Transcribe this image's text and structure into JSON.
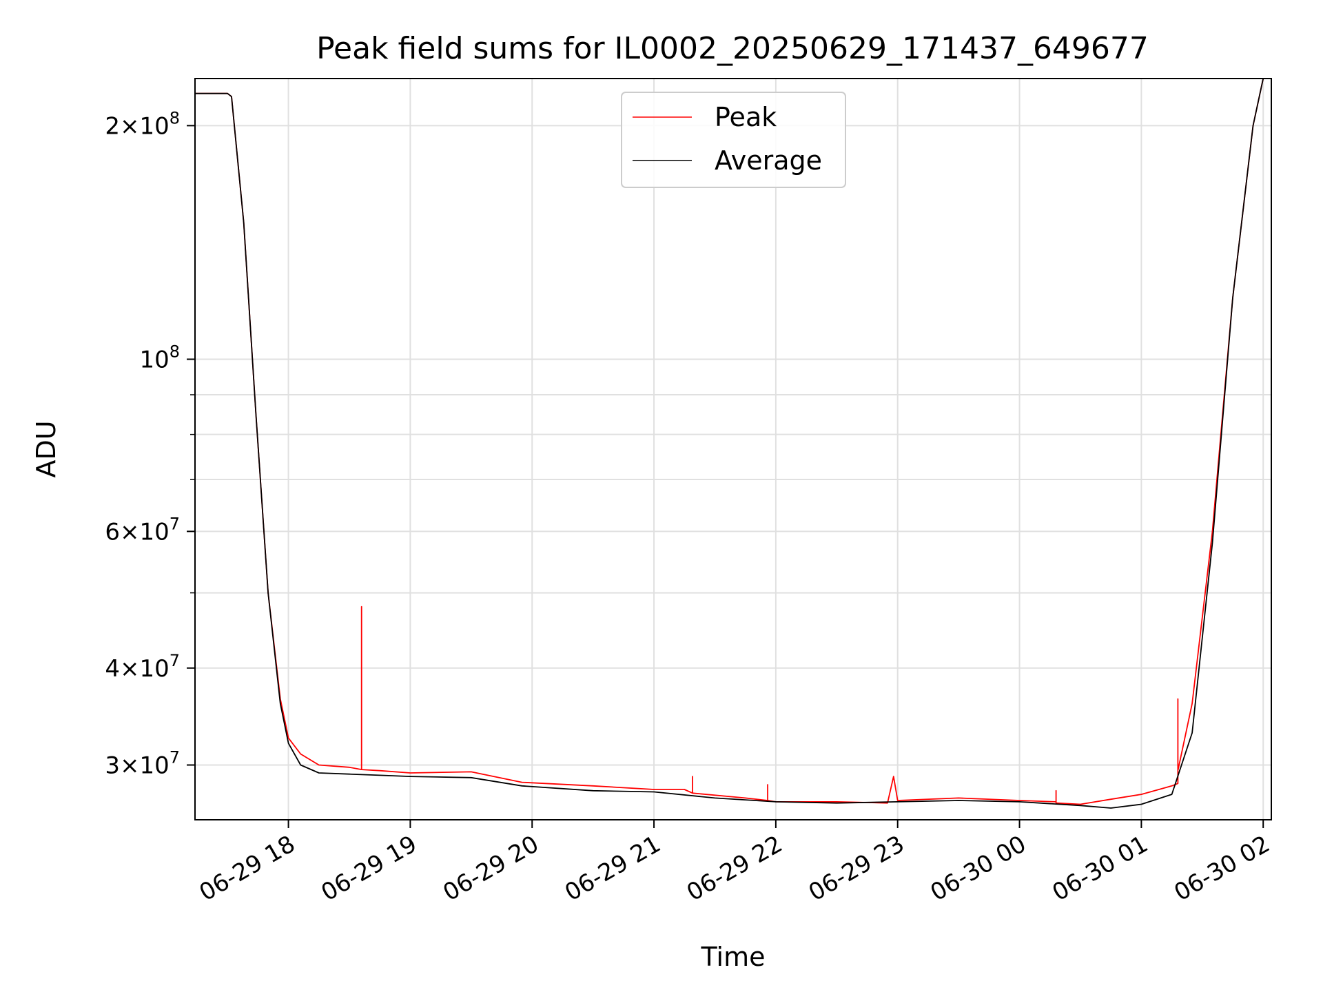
{
  "chart_data": {
    "type": "line",
    "title": "Peak field sums for IL0002_20250629_171437_649677",
    "xlabel": "Time",
    "ylabel": "ADU",
    "x_axis": {
      "type": "time",
      "range": [
        "2025-06-29T17:14",
        "2025-06-30T02:04"
      ],
      "ticks": [
        {
          "value": "2025-06-29T18:00",
          "label": "06-29 18"
        },
        {
          "value": "2025-06-29T19:00",
          "label": "06-29 19"
        },
        {
          "value": "2025-06-29T20:00",
          "label": "06-29 20"
        },
        {
          "value": "2025-06-29T21:00",
          "label": "06-29 21"
        },
        {
          "value": "2025-06-29T22:00",
          "label": "06-29 22"
        },
        {
          "value": "2025-06-29T23:00",
          "label": "06-29 23"
        },
        {
          "value": "2025-06-30T00:00",
          "label": "06-30 00"
        },
        {
          "value": "2025-06-30T01:00",
          "label": "06-30 01"
        },
        {
          "value": "2025-06-30T02:00",
          "label": "06-30 02"
        }
      ]
    },
    "y_axis": {
      "scale": "log",
      "range": [
        25500000,
        230000000
      ],
      "major_ticks": [
        {
          "value": 30000000,
          "label": "3×10^7",
          "mantissa": "3",
          "exp": "7"
        },
        {
          "value": 40000000,
          "label": "4×10^7",
          "mantissa": "4",
          "exp": "7"
        },
        {
          "value": 60000000,
          "label": "6×10^7",
          "mantissa": "6",
          "exp": "7"
        },
        {
          "value": 100000000,
          "label": "10^8",
          "mantissa": "",
          "exp": "8"
        },
        {
          "value": 200000000,
          "label": "2×10^8",
          "mantissa": "2",
          "exp": "8"
        }
      ],
      "minor_ticks": [
        50000000,
        70000000,
        80000000,
        90000000
      ]
    },
    "grid": true,
    "legend": {
      "position": "top-center",
      "entries": [
        "Peak",
        "Average"
      ]
    },
    "series": [
      {
        "name": "Peak",
        "color": "#ff0000",
        "x": [
          "2025-06-29T17:14",
          "2025-06-29T17:30",
          "2025-06-29T17:32",
          "2025-06-29T17:38",
          "2025-06-29T17:44",
          "2025-06-29T17:50",
          "2025-06-29T17:56",
          "2025-06-29T18:00",
          "2025-06-29T18:06",
          "2025-06-29T18:15",
          "2025-06-29T18:30",
          "2025-06-29T18:36",
          "2025-06-29T18:36",
          "2025-06-29T18:36",
          "2025-06-29T18:45",
          "2025-06-29T19:00",
          "2025-06-29T19:30",
          "2025-06-29T19:55",
          "2025-06-29T20:30",
          "2025-06-29T21:00",
          "2025-06-29T21:15",
          "2025-06-29T21:19",
          "2025-06-29T21:19",
          "2025-06-29T21:19",
          "2025-06-29T21:45",
          "2025-06-29T21:56",
          "2025-06-29T21:56",
          "2025-06-29T21:56",
          "2025-06-29T22:00",
          "2025-06-29T22:30",
          "2025-06-29T22:55",
          "2025-06-29T22:58",
          "2025-06-29T23:00",
          "2025-06-29T23:30",
          "2025-06-30T00:00",
          "2025-06-30T00:18",
          "2025-06-30T00:18",
          "2025-06-30T00:18",
          "2025-06-30T00:30",
          "2025-06-30T00:45",
          "2025-06-30T01:00",
          "2025-06-30T01:15",
          "2025-06-30T01:18",
          "2025-06-30T01:18",
          "2025-06-30T01:18",
          "2025-06-30T01:25",
          "2025-06-30T01:35",
          "2025-06-30T01:45",
          "2025-06-30T01:55",
          "2025-06-30T02:00",
          "2025-06-30T02:04"
        ],
        "y": [
          220000000,
          220000000,
          218000000,
          150000000,
          85000000,
          50000000,
          36500000,
          32500000,
          31000000,
          30000000,
          29800000,
          29600000,
          48000000,
          29600000,
          29500000,
          29300000,
          29400000,
          28500000,
          28200000,
          27900000,
          27900000,
          27600000,
          29000000,
          27600000,
          27200000,
          27000000,
          28300000,
          27000000,
          26900000,
          26900000,
          26800000,
          29000000,
          27000000,
          27200000,
          27000000,
          26900000,
          27800000,
          26800000,
          26700000,
          27100000,
          27500000,
          28200000,
          28400000,
          36500000,
          29500000,
          36000000,
          60000000,
          120000000,
          200000000,
          230000000,
          230000000
        ]
      },
      {
        "name": "Average",
        "color": "#000000",
        "x": [
          "2025-06-29T17:14",
          "2025-06-29T17:30",
          "2025-06-29T17:32",
          "2025-06-29T17:38",
          "2025-06-29T17:44",
          "2025-06-29T17:50",
          "2025-06-29T17:56",
          "2025-06-29T18:00",
          "2025-06-29T18:06",
          "2025-06-29T18:15",
          "2025-06-29T18:30",
          "2025-06-29T18:45",
          "2025-06-29T19:00",
          "2025-06-29T19:30",
          "2025-06-29T19:55",
          "2025-06-29T20:30",
          "2025-06-29T21:00",
          "2025-06-29T21:30",
          "2025-06-29T22:00",
          "2025-06-29T22:30",
          "2025-06-29T23:00",
          "2025-06-29T23:30",
          "2025-06-30T00:00",
          "2025-06-30T00:30",
          "2025-06-30T00:45",
          "2025-06-30T01:00",
          "2025-06-30T01:15",
          "2025-06-30T01:25",
          "2025-06-30T01:35",
          "2025-06-30T01:45",
          "2025-06-30T01:55",
          "2025-06-30T02:00",
          "2025-06-30T02:04"
        ],
        "y": [
          220000000,
          220000000,
          218000000,
          150000000,
          85000000,
          50000000,
          36000000,
          32000000,
          30000000,
          29300000,
          29200000,
          29100000,
          29000000,
          28900000,
          28200000,
          27800000,
          27700000,
          27200000,
          26900000,
          26800000,
          26900000,
          27000000,
          26900000,
          26600000,
          26400000,
          26700000,
          27500000,
          33000000,
          58000000,
          120000000,
          200000000,
          230000000,
          230000000
        ]
      }
    ]
  }
}
